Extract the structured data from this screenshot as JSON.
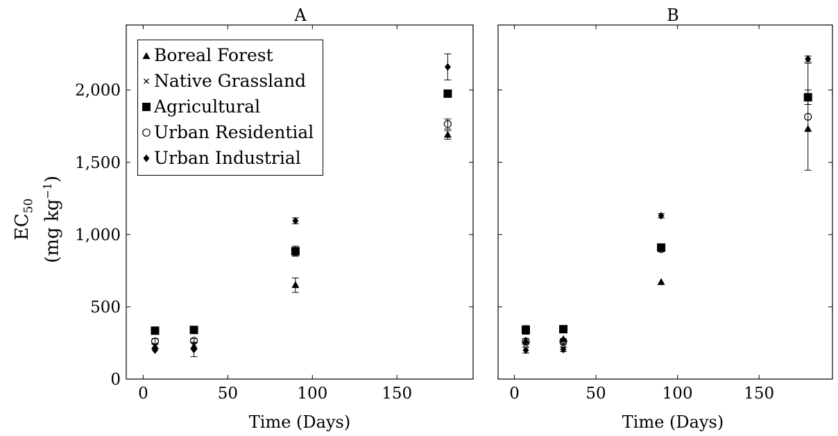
{
  "chart_data": [
    {
      "type": "scatter",
      "title": "A",
      "xlabel": "Time (Days)",
      "ylabel": "EC50 (mg kg−1)",
      "xlim": [
        -10,
        195
      ],
      "ylim": [
        0,
        2450
      ],
      "xticks": [
        0,
        50,
        100,
        150
      ],
      "xtick_labels": [
        "0",
        "50",
        "100",
        "150"
      ],
      "yticks": [
        0,
        500,
        1000,
        1500,
        2000
      ],
      "ytick_labels": [
        "0",
        "500",
        "1,000",
        "1,500",
        "2,000"
      ],
      "legend": "top-left",
      "series": [
        {
          "name": "Boreal Forest",
          "marker": "triangle",
          "points": [
            {
              "x": 7,
              "y": 225
            },
            {
              "x": 30,
              "y": 225
            },
            {
              "x": 90,
              "y": 650,
              "err": 50
            },
            {
              "x": 180,
              "y": 1690,
              "err": 30
            }
          ]
        },
        {
          "name": "Native Grassland",
          "marker": "cross",
          "points": [
            {
              "x": 7,
              "y": 235
            },
            {
              "x": 30,
              "y": 235
            },
            {
              "x": 90,
              "y": 870
            },
            {
              "x": 180,
              "y": 1975
            }
          ]
        },
        {
          "name": "Agricultural",
          "marker": "square",
          "points": [
            {
              "x": 7,
              "y": 335
            },
            {
              "x": 30,
              "y": 340
            },
            {
              "x": 90,
              "y": 885,
              "err": 35
            },
            {
              "x": 180,
              "y": 1975
            }
          ]
        },
        {
          "name": "Urban Residential",
          "marker": "circle",
          "points": [
            {
              "x": 7,
              "y": 260,
              "err": 20
            },
            {
              "x": 30,
              "y": 265,
              "err": 15
            },
            {
              "x": 90,
              "y": 880
            },
            {
              "x": 180,
              "y": 1765,
              "err": 35
            }
          ]
        },
        {
          "name": "Urban Industrial",
          "marker": "diamond",
          "points": [
            {
              "x": 7,
              "y": 200
            },
            {
              "x": 30,
              "y": 205,
              "err": 50
            },
            {
              "x": 90,
              "y": 1095,
              "err": 20
            },
            {
              "x": 180,
              "y": 2160,
              "err": 90
            }
          ]
        }
      ]
    },
    {
      "type": "scatter",
      "title": "B",
      "xlabel": "Time (Days)",
      "xlim": [
        -10,
        195
      ],
      "ylim": [
        0,
        2450
      ],
      "xticks": [
        0,
        50,
        100,
        150
      ],
      "xtick_labels": [
        "0",
        "50",
        "100",
        "150"
      ],
      "yticks": [
        0,
        500,
        1000,
        1500,
        2000
      ],
      "ytick_labels": [],
      "series": [
        {
          "name": "Boreal Forest",
          "marker": "triangle",
          "points": [
            {
              "x": 7,
              "y": 265
            },
            {
              "x": 30,
              "y": 275
            },
            {
              "x": 90,
              "y": 670
            },
            {
              "x": 180,
              "y": 1730
            }
          ]
        },
        {
          "name": "Native Grassland",
          "marker": "cross",
          "points": [
            {
              "x": 7,
              "y": 240
            },
            {
              "x": 30,
              "y": 240
            },
            {
              "x": 90,
              "y": 900
            },
            {
              "x": 180,
              "y": 1950
            }
          ]
        },
        {
          "name": "Agricultural",
          "marker": "square",
          "points": [
            {
              "x": 7,
              "y": 340,
              "err": 30
            },
            {
              "x": 30,
              "y": 345
            },
            {
              "x": 90,
              "y": 910
            },
            {
              "x": 180,
              "y": 1950,
              "err": 50
            }
          ]
        },
        {
          "name": "Urban Residential",
          "marker": "circle",
          "points": [
            {
              "x": 7,
              "y": 260,
              "err": 20
            },
            {
              "x": 30,
              "y": 260,
              "err": 20
            },
            {
              "x": 90,
              "y": 900
            },
            {
              "x": 180,
              "y": 1815,
              "err": 370
            }
          ]
        },
        {
          "name": "Urban Industrial",
          "marker": "diamond",
          "points": [
            {
              "x": 7,
              "y": 200,
              "err": 20
            },
            {
              "x": 30,
              "y": 205,
              "err": 15
            },
            {
              "x": 90,
              "y": 1130,
              "err": 15
            },
            {
              "x": 180,
              "y": 2215,
              "err": 20
            }
          ]
        }
      ]
    }
  ]
}
